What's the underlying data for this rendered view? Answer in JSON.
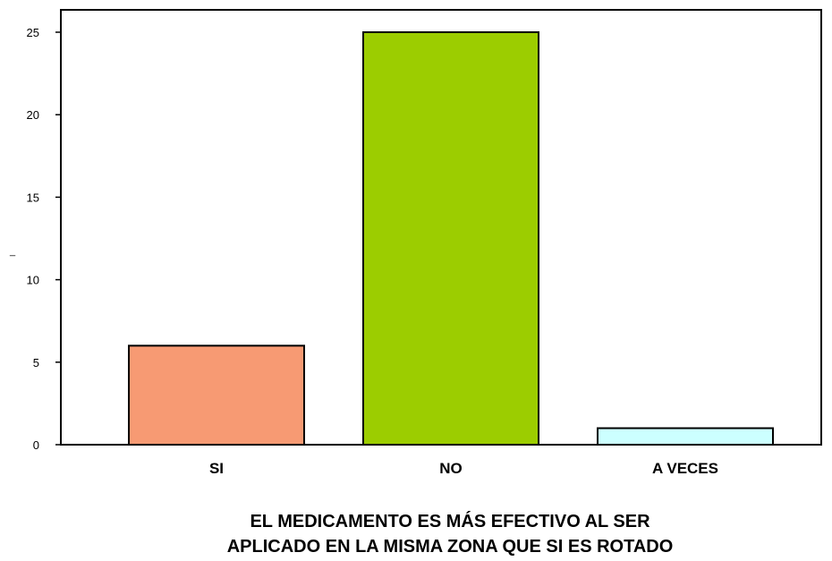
{
  "chart_data": {
    "type": "bar",
    "categories": [
      "SI",
      "NO",
      "A VECES"
    ],
    "values": [
      6,
      25,
      1
    ],
    "colors": [
      "#f79a73",
      "#9ccd00",
      "#ccffff"
    ],
    "ylabel": "_",
    "ylim": [
      0,
      25
    ],
    "yticks": [
      0,
      5,
      10,
      15,
      20,
      25
    ],
    "grid": false,
    "caption": {
      "line1": "EL MEDICAMENTO ES MÁS EFECTIVO AL SER",
      "line2": "APLICADO EN LA MISMA ZONA QUE SI ES ROTADO"
    }
  }
}
